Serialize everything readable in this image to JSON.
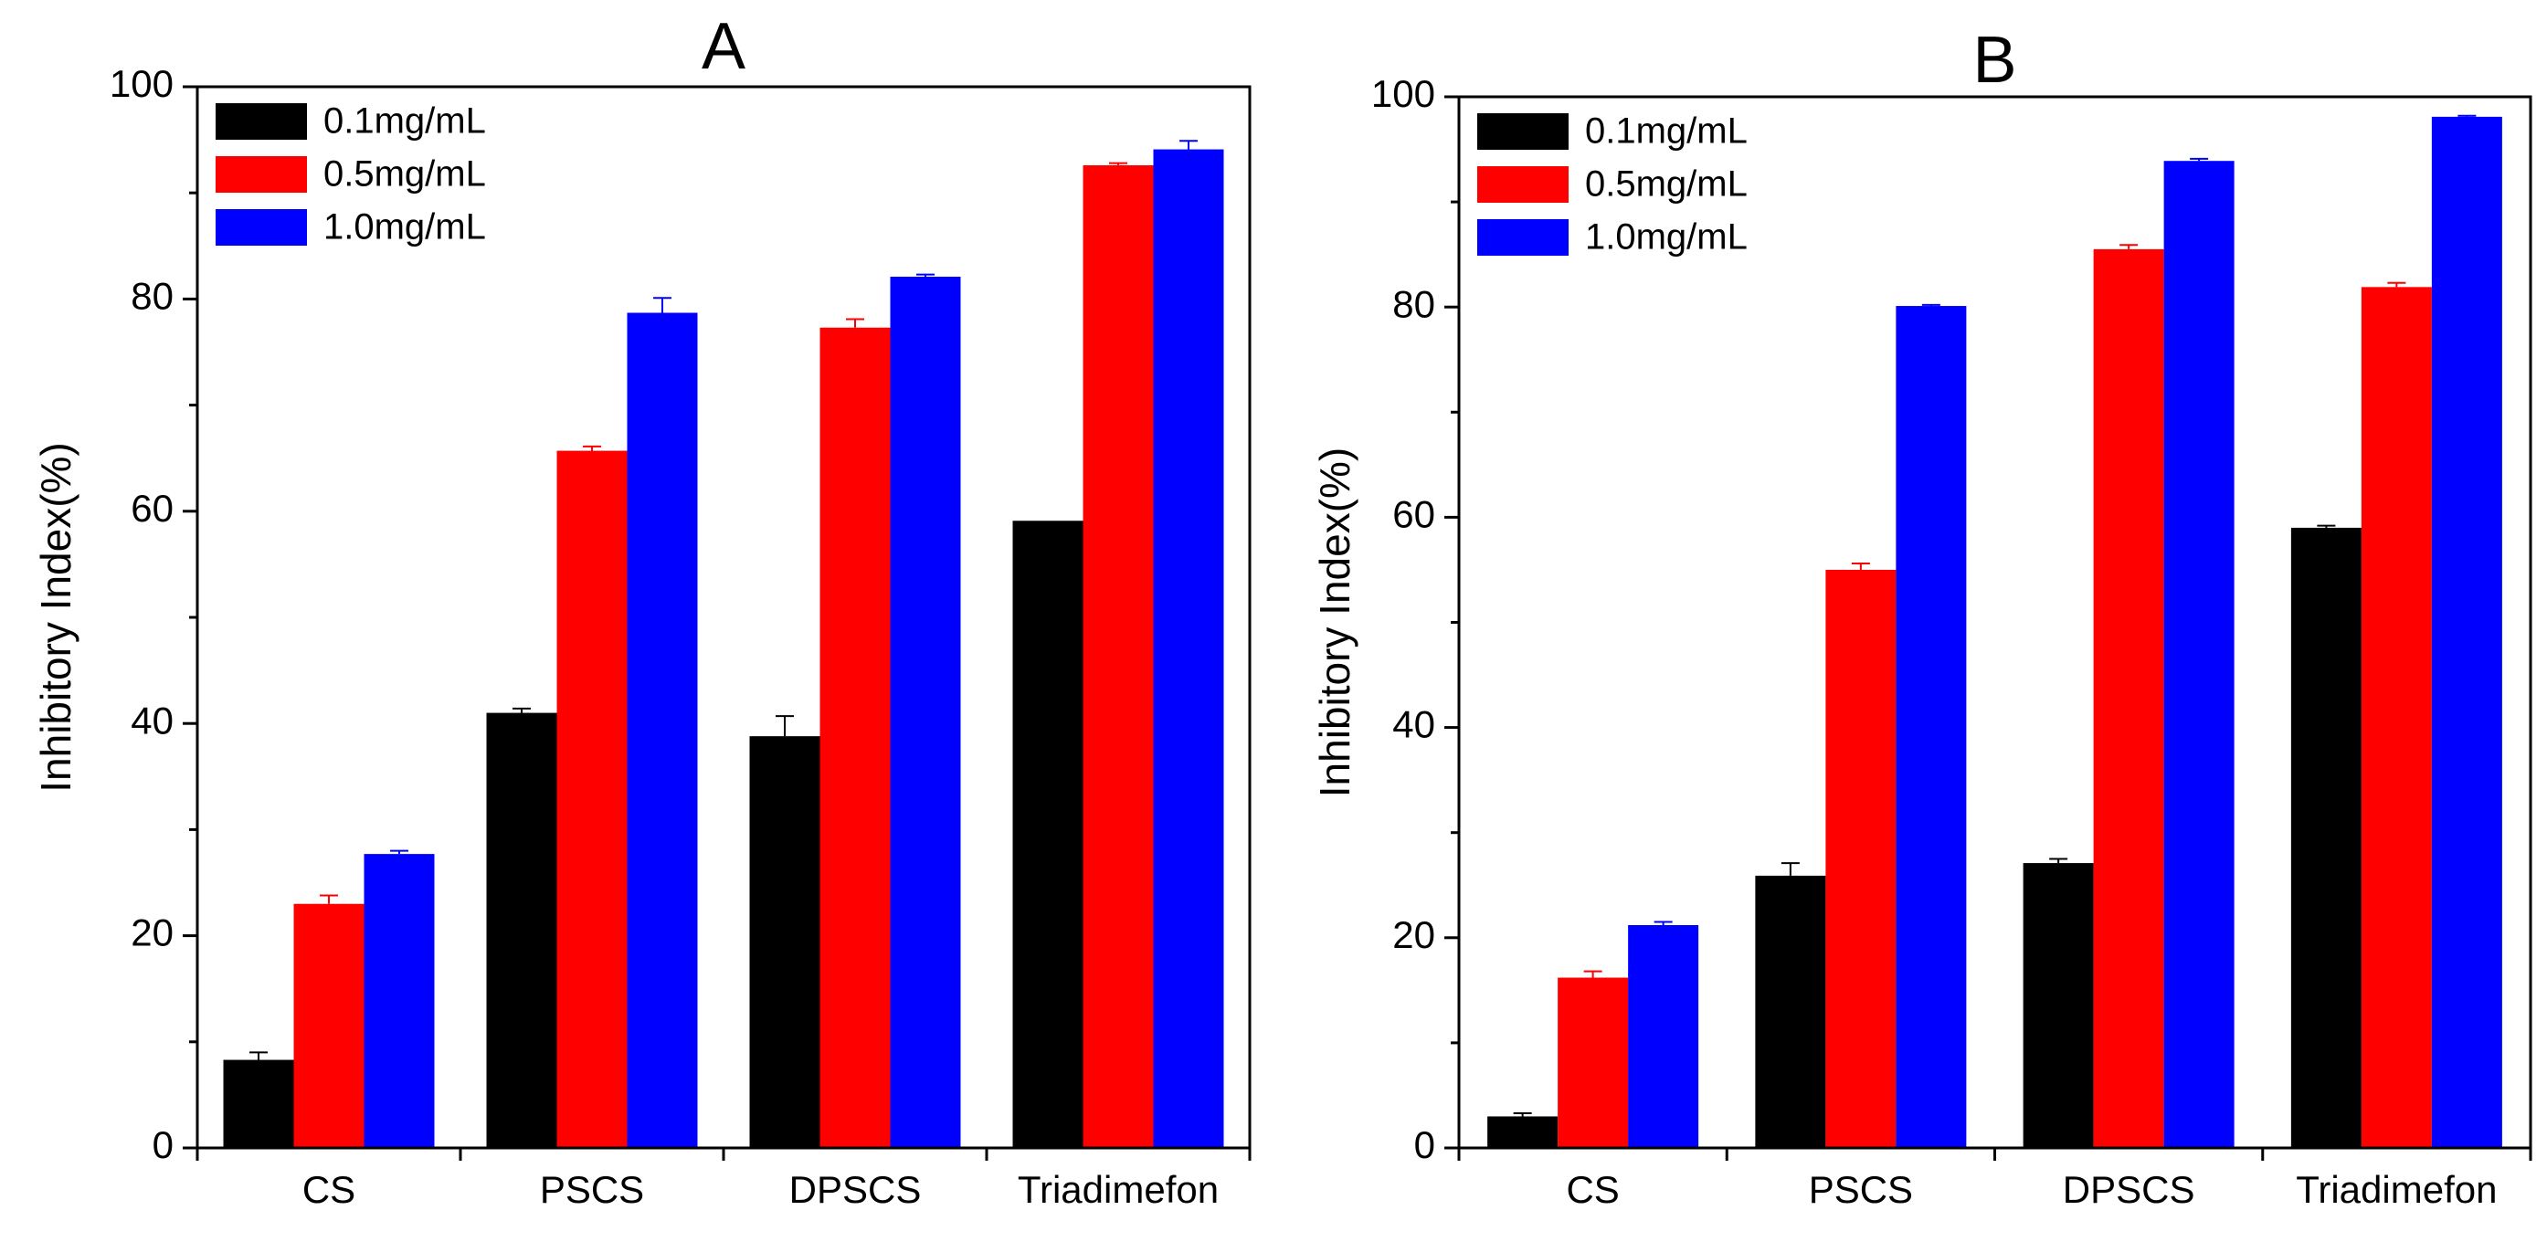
{
  "chart_data": [
    {
      "type": "bar",
      "title": "A",
      "xlabel": "",
      "ylabel": "Inhibitory Index(%)",
      "ylim": [
        0,
        100
      ],
      "yticks": [
        "0",
        "20",
        "40",
        "60",
        "80",
        "100"
      ],
      "categories": [
        "CS",
        "PSCS",
        "DPSCS",
        "Triadimefon"
      ],
      "legend_position": "top-left",
      "series": [
        {
          "name": "0.1mg/mL",
          "color": "#000000",
          "values": [
            8.3,
            41.0,
            38.8,
            59.1
          ],
          "errors": [
            0.7,
            0.4,
            1.9,
            0.0
          ]
        },
        {
          "name": "0.5mg/mL",
          "color": "#ff0000",
          "values": [
            23.0,
            65.7,
            77.3,
            92.6
          ],
          "errors": [
            0.8,
            0.4,
            0.8,
            0.2
          ]
        },
        {
          "name": "1.0mg/mL",
          "color": "#0000ff",
          "values": [
            27.7,
            78.7,
            82.1,
            94.1
          ],
          "errors": [
            0.3,
            1.4,
            0.2,
            0.8
          ]
        }
      ]
    },
    {
      "type": "bar",
      "title": "B",
      "xlabel": "",
      "ylabel": "Inhibitory Index(%)",
      "ylim": [
        0,
        100
      ],
      "yticks": [
        "0",
        "20",
        "40",
        "60",
        "80",
        "100"
      ],
      "categories": [
        "CS",
        "PSCS",
        "DPSCS",
        "Triadimefon"
      ],
      "legend_position": "top-left",
      "series": [
        {
          "name": "0.1mg/mL",
          "color": "#000000",
          "values": [
            3.0,
            25.9,
            27.1,
            59.0
          ],
          "errors": [
            0.3,
            1.2,
            0.4,
            0.2
          ]
        },
        {
          "name": "0.5mg/mL",
          "color": "#ff0000",
          "values": [
            16.2,
            55.0,
            85.5,
            81.9
          ],
          "errors": [
            0.6,
            0.6,
            0.4,
            0.4
          ]
        },
        {
          "name": "1.0mg/mL",
          "color": "#0000ff",
          "values": [
            21.2,
            80.1,
            93.9,
            98.1
          ],
          "errors": [
            0.3,
            0.1,
            0.2,
            0.1
          ]
        }
      ]
    }
  ]
}
